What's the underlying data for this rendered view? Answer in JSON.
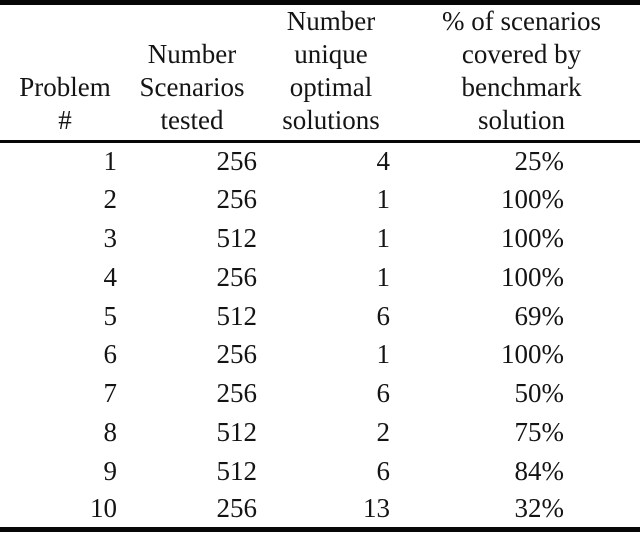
{
  "page": {
    "background_color": "#ffffff",
    "text_color": "#141414",
    "rule_color": "#070707"
  },
  "table": {
    "headers": [
      "Problem\n#",
      "Number\nScenarios\ntested",
      "Number\nunique\noptimal\nsolutions",
      "% of scenarios\ncovered by\nbenchmark\nsolution"
    ],
    "rows": [
      [
        "1",
        "256",
        "4",
        "25%"
      ],
      [
        "2",
        "256",
        "1",
        "100%"
      ],
      [
        "3",
        "512",
        "1",
        "100%"
      ],
      [
        "4",
        "256",
        "1",
        "100%"
      ],
      [
        "5",
        "512",
        "6",
        "69%"
      ],
      [
        "6",
        "256",
        "1",
        "100%"
      ],
      [
        "7",
        "256",
        "6",
        "50%"
      ],
      [
        "8",
        "512",
        "2",
        "75%"
      ],
      [
        "9",
        "512",
        "6",
        "84%"
      ],
      [
        "10",
        "256",
        "13",
        "32%"
      ]
    ]
  }
}
